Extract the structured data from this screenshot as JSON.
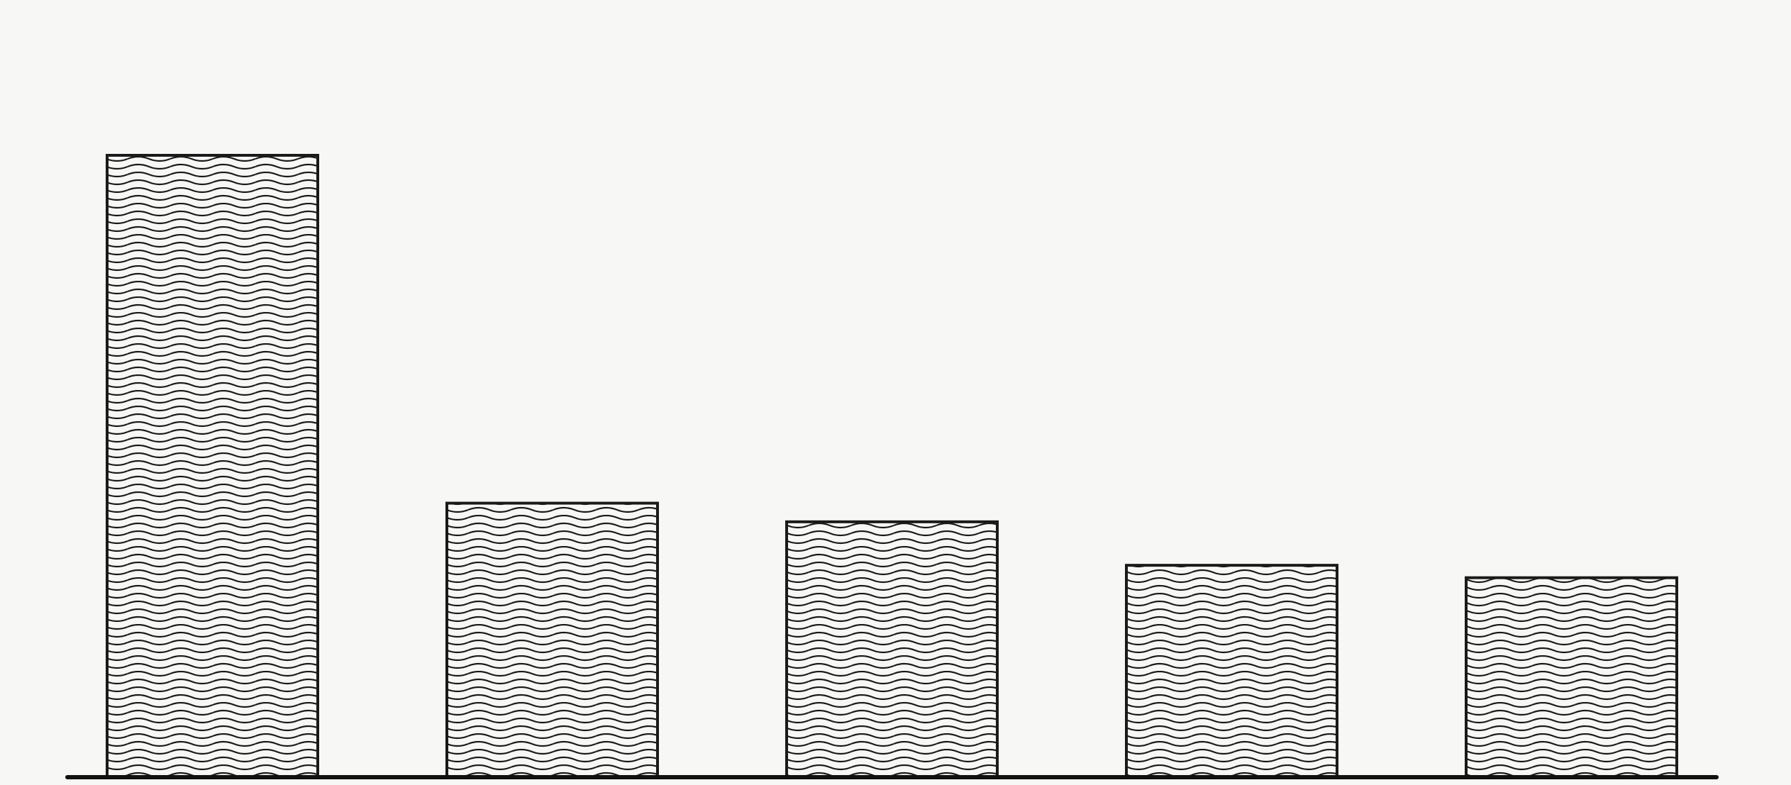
{
  "chart_data": {
    "type": "bar",
    "categories": [
      null,
      null,
      null,
      null,
      null
    ],
    "values": [
      100,
      44,
      41,
      34,
      32
    ],
    "color": "#1a1a1a",
    "ylim": [
      0,
      125
    ],
    "grid": false
  }
}
